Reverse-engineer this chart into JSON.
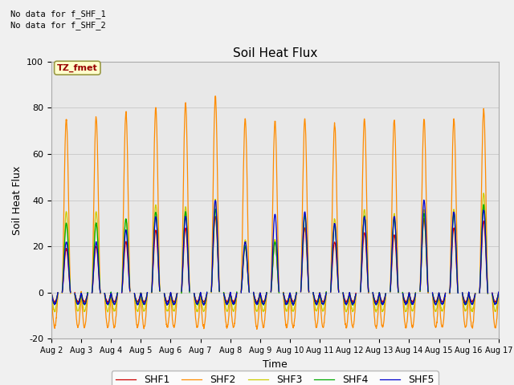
{
  "title": "Soil Heat Flux",
  "xlabel": "Time",
  "ylabel": "Soil Heat Flux",
  "ylim": [
    -20,
    100
  ],
  "xlim": [
    0,
    15
  ],
  "x_tick_labels": [
    "Aug 2",
    "Aug 3",
    "Aug 4",
    "Aug 5",
    "Aug 6",
    "Aug 7",
    "Aug 8",
    "Aug 9",
    "Aug 10",
    "Aug 11",
    "Aug 12",
    "Aug 13",
    "Aug 14",
    "Aug 15",
    "Aug 16",
    "Aug 17"
  ],
  "legend_entries": [
    "SHF1",
    "SHF2",
    "SHF3",
    "SHF4",
    "SHF5"
  ],
  "line_colors": [
    "#cc0000",
    "#ff8c00",
    "#cccc00",
    "#00aa00",
    "#0000cc"
  ],
  "annotation1": "No data for f_SHF_1",
  "annotation2": "No data for f_SHF_2",
  "tz_label": "TZ_fmet",
  "grid_color": "#cccccc",
  "bg_color": "#e8e8e8",
  "fig_bg_color": "#f0f0f0",
  "n_days": 15,
  "n_points_per_day": 144,
  "peaks_shf2": [
    75,
    76,
    78,
    80,
    82,
    85,
    75,
    74,
    75,
    73,
    75,
    75,
    75,
    75,
    79
  ],
  "peaks_shf3": [
    35,
    35,
    32,
    38,
    37,
    40,
    23,
    23,
    34,
    32,
    36,
    34,
    36,
    36,
    43
  ],
  "peaks_shf4": [
    30,
    30,
    32,
    35,
    35,
    36,
    20,
    22,
    33,
    29,
    33,
    32,
    34,
    34,
    38
  ],
  "peaks_shf5": [
    22,
    22,
    27,
    33,
    33,
    40,
    22,
    34,
    35,
    30,
    33,
    33,
    40,
    35,
    36
  ],
  "peaks_shf1": [
    19,
    20,
    22,
    27,
    28,
    33,
    20,
    22,
    28,
    22,
    26,
    25,
    32,
    28,
    31
  ],
  "night_shf2": -15,
  "night_shf3": -8,
  "night_shf4": -5,
  "night_shf5": -5,
  "night_shf1": -4
}
